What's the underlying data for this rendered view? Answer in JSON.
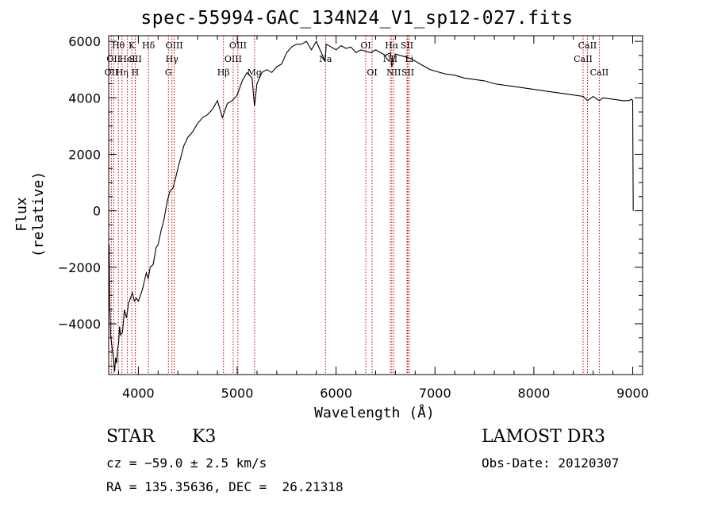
{
  "chart_data": {
    "type": "line",
    "title": "spec-55994-GAC_134N24_V1_sp12-027.fits",
    "xlabel": "Wavelength (Å)",
    "ylabel": "Flux (relative)",
    "xlim": [
      3700,
      9100
    ],
    "ylim": [
      -5800,
      6200
    ],
    "xticks": [
      4000,
      5000,
      6000,
      7000,
      8000,
      9000
    ],
    "yticks": [
      -4000,
      -2000,
      0,
      2000,
      4000,
      6000
    ],
    "xtick_labels": [
      "4000",
      "5000",
      "6000",
      "7000",
      "8000",
      "9000"
    ],
    "ytick_labels": [
      "−4000",
      "−2000",
      "0",
      "2000",
      "4000",
      "6000"
    ],
    "series": [
      {
        "name": "flux",
        "x": [
          3700,
          3705,
          3710,
          3715,
          3720,
          3730,
          3740,
          3750,
          3760,
          3770,
          3780,
          3790,
          3800,
          3810,
          3820,
          3840,
          3860,
          3880,
          3900,
          3920,
          3940,
          3960,
          3980,
          4000,
          4020,
          4040,
          4060,
          4080,
          4100,
          4120,
          4150,
          4180,
          4200,
          4230,
          4260,
          4290,
          4320,
          4350,
          4380,
          4400,
          4430,
          4460,
          4500,
          4550,
          4600,
          4650,
          4700,
          4750,
          4800,
          4850,
          4900,
          4950,
          5000,
          5050,
          5100,
          5150,
          5175,
          5200,
          5250,
          5300,
          5350,
          5400,
          5450,
          5500,
          5550,
          5600,
          5650,
          5700,
          5750,
          5800,
          5850,
          5890,
          5900,
          5950,
          6000,
          6050,
          6100,
          6150,
          6200,
          6250,
          6300,
          6350,
          6400,
          6450,
          6500,
          6550,
          6563,
          6600,
          6650,
          6700,
          6750,
          6800,
          6850,
          6900,
          6950,
          7000,
          7050,
          7100,
          7200,
          7300,
          7400,
          7500,
          7600,
          7700,
          7800,
          7900,
          8000,
          8100,
          8200,
          8300,
          8400,
          8500,
          8542,
          8600,
          8662,
          8700,
          8800,
          8900,
          8960,
          8990,
          9000,
          9002,
          9005
        ],
        "y": [
          -2000,
          -1200,
          -3300,
          -3800,
          -4400,
          -4700,
          -5000,
          -5300,
          -5700,
          -5200,
          -5400,
          -4900,
          -4700,
          -4100,
          -4400,
          -4300,
          -3500,
          -3800,
          -3300,
          -3100,
          -2900,
          -3200,
          -3100,
          -3200,
          -3000,
          -2800,
          -2500,
          -2200,
          -2400,
          -2000,
          -1900,
          -1300,
          -1200,
          -700,
          -300,
          300,
          700,
          800,
          1200,
          1500,
          1900,
          2300,
          2600,
          2800,
          3100,
          3300,
          3400,
          3600,
          3900,
          3300,
          3800,
          3900,
          4100,
          4600,
          4900,
          4700,
          3700,
          4500,
          4900,
          5000,
          4900,
          5100,
          5200,
          5600,
          5800,
          5900,
          5900,
          6000,
          5700,
          6000,
          5600,
          5300,
          5900,
          5800,
          5700,
          5850,
          5750,
          5800,
          5600,
          5700,
          5650,
          5600,
          5700,
          5600,
          5500,
          5600,
          5100,
          5550,
          5500,
          5450,
          5400,
          5300,
          5200,
          5100,
          5000,
          4950,
          4900,
          4850,
          4800,
          4700,
          4650,
          4600,
          4500,
          4450,
          4400,
          4350,
          4300,
          4250,
          4200,
          4150,
          4100,
          4050,
          3900,
          4050,
          3900,
          4000,
          3950,
          3900,
          3900,
          3950,
          3900,
          2000,
          0
        ]
      }
    ],
    "lines": [
      {
        "wavelength": 3727,
        "label": "OII",
        "row": 2
      },
      {
        "wavelength": 3750,
        "label": "OII",
        "row": 1
      },
      {
        "wavelength": 3798,
        "label": "Hθ",
        "row": 0
      },
      {
        "wavelength": 3835,
        "label": "Hη",
        "row": 2
      },
      {
        "wavelength": 3889,
        "label": "HeI",
        "row": 1
      },
      {
        "wavelength": 3934,
        "label": "K",
        "row": 0
      },
      {
        "wavelength": 3968,
        "label": "H",
        "row": 2
      },
      {
        "wavelength": 3970,
        "label": "SII",
        "row": 1
      },
      {
        "wavelength": 4102,
        "label": "Hδ",
        "row": 0
      },
      {
        "wavelength": 4304,
        "label": "G",
        "row": 2
      },
      {
        "wavelength": 4340,
        "label": "Hγ",
        "row": 1
      },
      {
        "wavelength": 4363,
        "label": "OIII",
        "row": 0
      },
      {
        "wavelength": 4861,
        "label": "Hβ",
        "row": 2
      },
      {
        "wavelength": 4959,
        "label": "OIII",
        "row": 1
      },
      {
        "wavelength": 5007,
        "label": "OIII",
        "row": 0
      },
      {
        "wavelength": 5175,
        "label": "Mg",
        "row": 2
      },
      {
        "wavelength": 5893,
        "label": "Na",
        "row": 1
      },
      {
        "wavelength": 6300,
        "label": "OI",
        "row": 0
      },
      {
        "wavelength": 6364,
        "label": "OI",
        "row": 2
      },
      {
        "wavelength": 6548,
        "label": "NII",
        "row": 1
      },
      {
        "wavelength": 6563,
        "label": "Hα",
        "row": 0
      },
      {
        "wavelength": 6583,
        "label": "NII",
        "row": 2
      },
      {
        "wavelength": 6717,
        "label": "SII",
        "row": 0
      },
      {
        "wavelength": 6725,
        "label": "SII",
        "row": 2
      },
      {
        "wavelength": 6740,
        "label": "Li",
        "row": 1
      },
      {
        "wavelength": 8498,
        "label": "CaII",
        "row": 1
      },
      {
        "wavelength": 8542,
        "label": "CaII",
        "row": 0
      },
      {
        "wavelength": 8662,
        "label": "CaII",
        "row": 2
      }
    ],
    "line_color": "#cc0000",
    "spectrum_color": "#000000"
  },
  "info": {
    "object_class": "STAR",
    "subclass": "K3",
    "survey": "LAMOST DR3",
    "redshift": "cz = −59.0 ± 2.5 km/s",
    "obs_date": "Obs-Date: 20120307",
    "coordinates": "RA = 135.35636, DEC =  26.21318"
  }
}
